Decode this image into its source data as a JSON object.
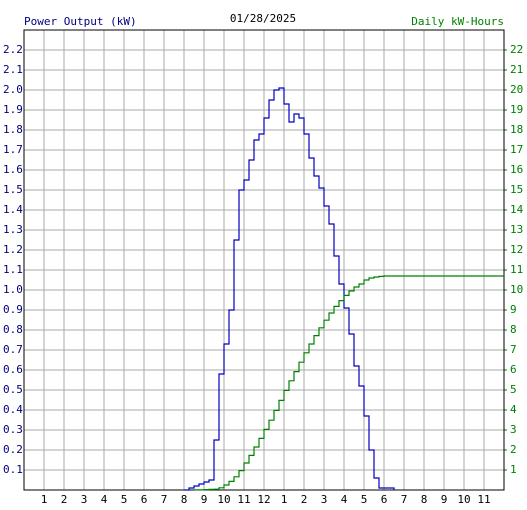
{
  "chart_data": {
    "type": "step-line",
    "title": "01/28/2025",
    "xlim": [
      0,
      24
    ],
    "xticks": [
      1,
      2,
      3,
      4,
      5,
      6,
      7,
      8,
      9,
      10,
      11,
      12,
      {
        "value": 13,
        "label": "1"
      },
      {
        "value": 14,
        "label": "2"
      },
      {
        "value": 15,
        "label": "3"
      },
      {
        "value": 16,
        "label": "4"
      },
      {
        "value": 17,
        "label": "5"
      },
      {
        "value": 18,
        "label": "6"
      },
      {
        "value": 19,
        "label": "7"
      },
      {
        "value": 20,
        "label": "8"
      },
      {
        "value": 21,
        "label": "9"
      },
      {
        "value": 22,
        "label": "10"
      },
      {
        "value": 23,
        "label": "11"
      }
    ],
    "ylim": [
      0,
      2.3
    ],
    "yticks": [
      0.1,
      0.2,
      0.3,
      0.4,
      0.5,
      0.6,
      0.7,
      0.8,
      0.9,
      {
        "value": 1,
        "label": "1.0"
      },
      1.1,
      1.2,
      1.3,
      1.4,
      1.5,
      1.6,
      1.7,
      1.8,
      1.9,
      {
        "value": 2,
        "label": "2.0"
      },
      2.1,
      2.2
    ],
    "y2lim": [
      0,
      23
    ],
    "y2ticks": [
      1,
      2,
      3,
      4,
      5,
      6,
      7,
      8,
      9,
      10,
      11,
      12,
      13,
      14,
      15,
      16,
      17,
      18,
      19,
      20,
      21,
      22
    ],
    "grid": true,
    "series": [
      {
        "name": "Power Output (kW)",
        "color": "#0000c0",
        "axis": "y",
        "x": [
          8,
          8.25,
          8.5,
          8.75,
          9,
          9.25,
          9.5,
          9.75,
          10,
          10.25,
          10.5,
          10.75,
          11,
          11.25,
          11.5,
          11.75,
          12,
          12.25,
          12.5,
          12.75,
          13,
          13.25,
          13.5,
          13.75,
          14,
          14.25,
          14.5,
          14.75,
          15,
          15.25,
          15.5,
          15.75,
          16,
          16.25,
          16.5,
          16.75,
          17,
          17.25,
          17.5,
          17.75,
          18,
          18.25,
          18.5
        ],
        "values": [
          0,
          0.01,
          0.02,
          0.03,
          0.04,
          0.05,
          0.25,
          0.58,
          0.73,
          0.9,
          1.25,
          1.5,
          1.55,
          1.65,
          1.75,
          1.78,
          1.86,
          1.95,
          2.0,
          2.01,
          1.93,
          1.84,
          1.88,
          1.86,
          1.78,
          1.66,
          1.57,
          1.51,
          1.42,
          1.33,
          1.17,
          1.03,
          0.91,
          0.78,
          0.62,
          0.52,
          0.37,
          0.2,
          0.06,
          0.01,
          0.01,
          0.01,
          0
        ]
      },
      {
        "name": "Daily kW-Hours",
        "color": "#008000",
        "axis": "y2",
        "x": [
          8.5,
          8.75,
          9,
          9.25,
          9.5,
          9.75,
          10,
          10.25,
          10.5,
          10.75,
          11,
          11.25,
          11.5,
          11.75,
          12,
          12.25,
          12.5,
          12.75,
          13,
          13.25,
          13.5,
          13.75,
          14,
          14.25,
          14.5,
          14.75,
          15,
          15.25,
          15.5,
          15.75,
          16,
          16.25,
          16.5,
          16.75,
          17,
          17.25,
          17.5,
          17.75,
          18,
          24
        ],
        "values": [
          0.01,
          0.01,
          0.02,
          0.03,
          0.04,
          0.11,
          0.25,
          0.43,
          0.66,
          0.97,
          1.35,
          1.73,
          2.15,
          2.58,
          3.03,
          3.49,
          3.98,
          4.48,
          4.98,
          5.46,
          5.92,
          6.39,
          6.86,
          7.3,
          7.72,
          8.11,
          8.49,
          8.85,
          9.18,
          9.47,
          9.73,
          9.95,
          10.15,
          10.3,
          10.5,
          10.6,
          10.65,
          10.68,
          10.7,
          10.7
        ]
      }
    ]
  }
}
